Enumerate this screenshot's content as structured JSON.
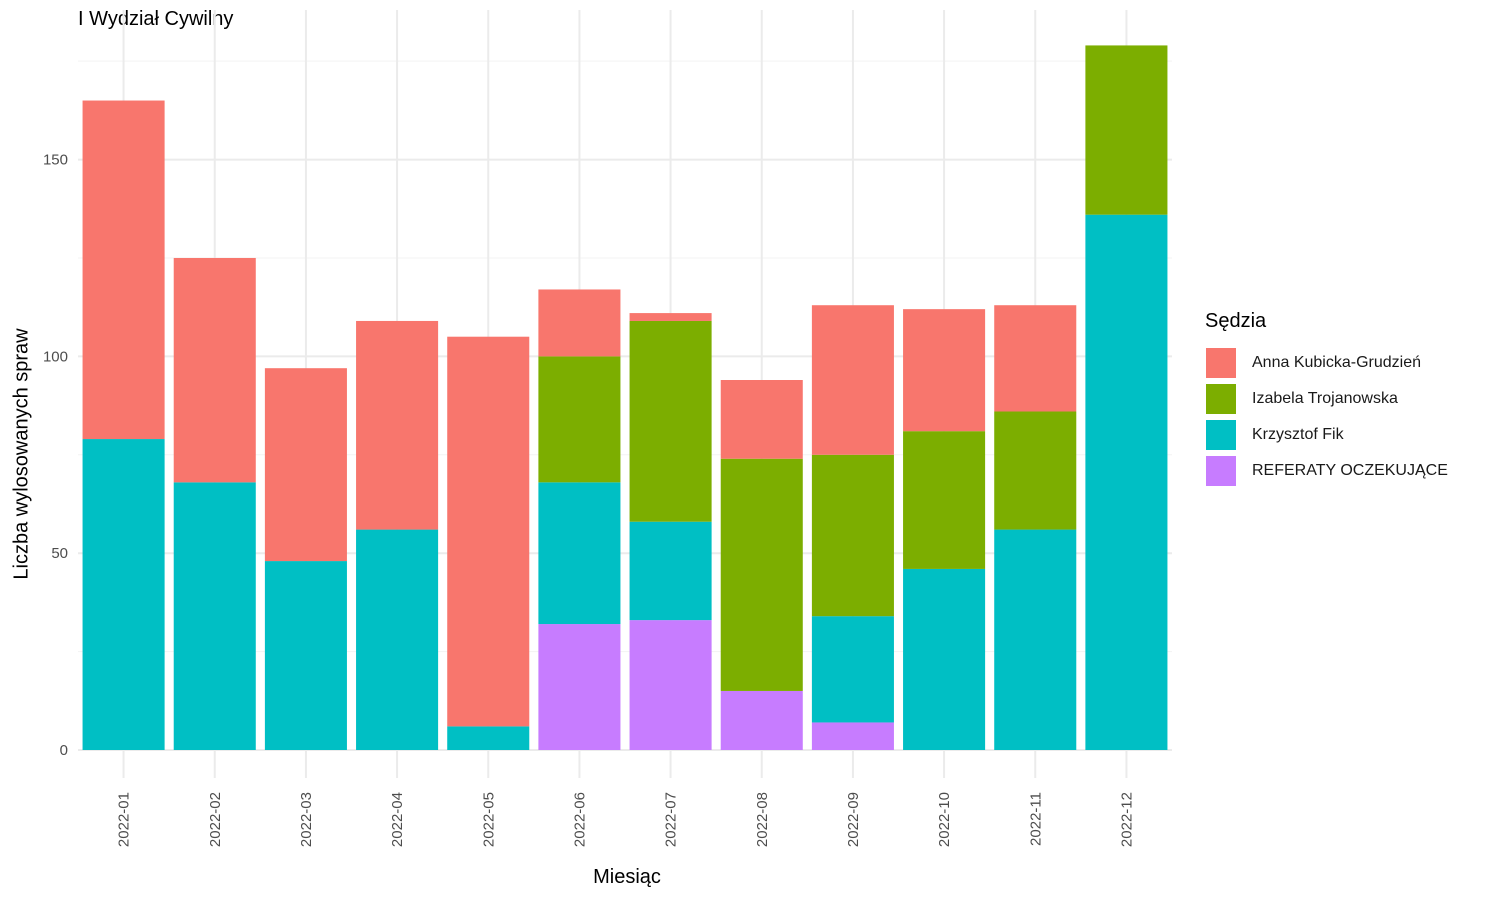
{
  "chart_data": {
    "type": "bar",
    "stacked": true,
    "title": "I Wydział Cywilny",
    "xlabel": "Miesiąc",
    "ylabel": "Liczba wylosowanych spraw",
    "legend_title": "Sędzia",
    "legend_position": "right",
    "grid": true,
    "ylim": [
      0,
      188
    ],
    "yticks": [
      0,
      50,
      100,
      150
    ],
    "categories": [
      "2022-01",
      "2022-02",
      "2022-03",
      "2022-04",
      "2022-05",
      "2022-06",
      "2022-07",
      "2022-08",
      "2022-09",
      "2022-10",
      "2022-11",
      "2022-12"
    ],
    "series": [
      {
        "name": "REFERATY OCZEKUJĄCE",
        "color": "#C77CFF",
        "values": [
          0,
          0,
          0,
          0,
          0,
          32,
          33,
          15,
          7,
          0,
          0,
          0
        ]
      },
      {
        "name": "Krzysztof Fik",
        "color": "#00BFC4",
        "values": [
          79,
          68,
          48,
          56,
          6,
          36,
          25,
          0,
          27,
          46,
          56,
          136
        ]
      },
      {
        "name": "Izabela Trojanowska",
        "color": "#7CAE00",
        "values": [
          0,
          0,
          0,
          0,
          0,
          32,
          51,
          59,
          41,
          35,
          30,
          43
        ]
      },
      {
        "name": "Anna Kubicka-Grudzień",
        "color": "#F8766D",
        "values": [
          86,
          57,
          49,
          53,
          99,
          17,
          2,
          20,
          38,
          31,
          27,
          0
        ]
      }
    ],
    "legend_order": [
      "Anna Kubicka-Grudzień",
      "Izabela Trojanowska",
      "Krzysztof Fik",
      "REFERATY OCZEKUJĄCE"
    ]
  }
}
